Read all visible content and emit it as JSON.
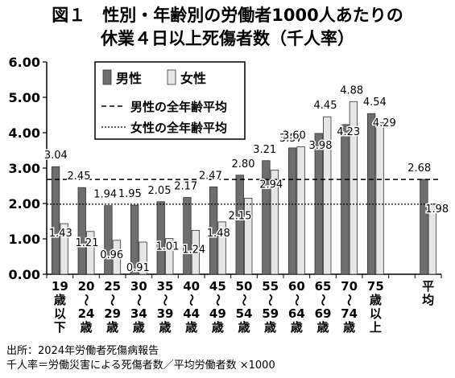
{
  "title_line1": "図１　性別・年齢別の労働者1000人あたりの",
  "title_line2": "休業４日以上死傷者数（千人率）",
  "source_note": "出所：2024年労働者死傷病報告",
  "formula_note": "千人率＝労働災害による死傷者数／平均労働者数 ×1000",
  "colors": {
    "male": "#6e6e6e",
    "female": "#e6e6e6",
    "bar_stroke": "#333333"
  },
  "chart_data": {
    "type": "bar",
    "title": "",
    "xlabel": "",
    "ylabel": "",
    "ylim": [
      0,
      6
    ],
    "yticks": [
      "0.00",
      "1.00",
      "2.00",
      "3.00",
      "4.00",
      "5.00",
      "6.00"
    ],
    "grid": false,
    "legend_position": "top-left",
    "categories": [
      "19歳以下",
      "20〜24歳",
      "25〜29歳",
      "30〜34歳",
      "35〜39歳",
      "40〜44歳",
      "45〜49歳",
      "50〜54歳",
      "55〜59歳",
      "60〜64歳",
      "65〜69歳",
      "70〜74歳",
      "75歳以上",
      "",
      "平均"
    ],
    "category_label_chars": [
      [
        "19",
        "歳",
        "以",
        "下"
      ],
      [
        "20",
        "〜",
        "24",
        "歳"
      ],
      [
        "25",
        "〜",
        "29",
        "歳"
      ],
      [
        "30",
        "〜",
        "34",
        "歳"
      ],
      [
        "35",
        "〜",
        "39",
        "歳"
      ],
      [
        "40",
        "〜",
        "44",
        "歳"
      ],
      [
        "45",
        "〜",
        "49",
        "歳"
      ],
      [
        "50",
        "〜",
        "54",
        "歳"
      ],
      [
        "55",
        "〜",
        "59",
        "歳"
      ],
      [
        "60",
        "〜",
        "64",
        "歳"
      ],
      [
        "65",
        "〜",
        "69",
        "歳"
      ],
      [
        "70",
        "〜",
        "74",
        "歳"
      ],
      [
        "75",
        "歳",
        "以",
        "上"
      ],
      [],
      [
        "平",
        "均"
      ]
    ],
    "series": [
      {
        "name": "男性",
        "values": [
          3.04,
          2.45,
          1.94,
          1.95,
          2.05,
          2.17,
          2.47,
          2.8,
          3.21,
          3.57,
          3.98,
          4.23,
          4.54,
          null,
          2.68
        ],
        "labels": [
          "3.04",
          "2.45",
          "1.94",
          "1.95",
          "2.05",
          "2.17",
          "2.47",
          "2.80",
          "3.21",
          "3.57",
          "3.98",
          "4.23",
          "4.54",
          "",
          "2.68"
        ]
      },
      {
        "name": "女性",
        "values": [
          1.43,
          1.21,
          0.96,
          0.91,
          1.01,
          1.24,
          1.48,
          2.15,
          2.94,
          3.6,
          4.45,
          4.88,
          4.29,
          null,
          1.98
        ],
        "labels": [
          "1.43",
          "1.21",
          "0.96",
          "0.91",
          "1.01",
          "1.24",
          "1.48",
          "2.15",
          "2.94",
          "3.60",
          "4.45",
          "4.88",
          "4.29",
          "",
          "1.98"
        ]
      }
    ],
    "reference_lines": [
      {
        "name": "男性の全年齢平均",
        "value": 2.68,
        "style": "dashed"
      },
      {
        "name": "女性の全年齢平均",
        "value": 1.98,
        "style": "dotted"
      }
    ]
  }
}
